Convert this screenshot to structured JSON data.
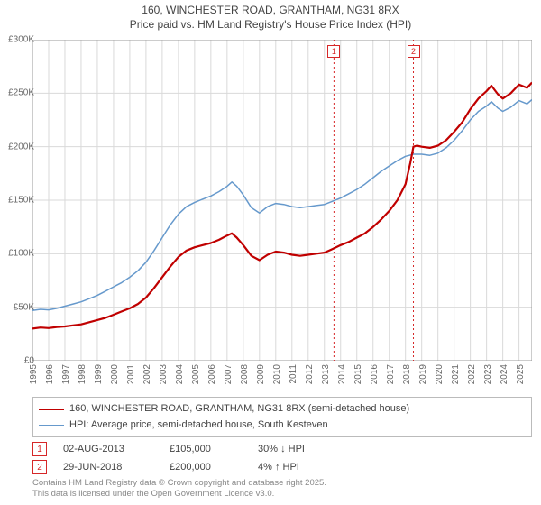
{
  "title_line1": "160, WINCHESTER ROAD, GRANTHAM, NG31 8RX",
  "title_line2": "Price paid vs. HM Land Registry's House Price Index (HPI)",
  "chart": {
    "type": "line",
    "background_color": "#ffffff",
    "grid_color": "#d9d9d9",
    "axis_color": "#999999",
    "xlim": [
      1995,
      2025.8
    ],
    "ylim": [
      0,
      300000
    ],
    "ytick_step": 50000,
    "y_ticks": [
      {
        "v": 0,
        "label": "£0"
      },
      {
        "v": 50000,
        "label": "£50K"
      },
      {
        "v": 100000,
        "label": "£100K"
      },
      {
        "v": 150000,
        "label": "£150K"
      },
      {
        "v": 200000,
        "label": "£200K"
      },
      {
        "v": 250000,
        "label": "£250K"
      },
      {
        "v": 300000,
        "label": "£300K"
      }
    ],
    "x_ticks": [
      1995,
      1996,
      1997,
      1998,
      1999,
      2000,
      2001,
      2002,
      2003,
      2004,
      2005,
      2006,
      2007,
      2008,
      2009,
      2010,
      2011,
      2012,
      2013,
      2014,
      2015,
      2016,
      2017,
      2018,
      2019,
      2020,
      2021,
      2022,
      2023,
      2024,
      2025
    ],
    "marker_line_color": "#d62728",
    "marker_line_dash": "2,3",
    "markers": [
      {
        "n": "1",
        "x": 2013.59
      },
      {
        "n": "2",
        "x": 2018.49
      }
    ],
    "series": [
      {
        "id": "price_paid",
        "color": "#c00000",
        "width": 2.2,
        "legend": "160, WINCHESTER ROAD, GRANTHAM, NG31 8RX (semi-detached house)",
        "points": [
          [
            1995.0,
            30000
          ],
          [
            1995.5,
            31000
          ],
          [
            1996.0,
            30500
          ],
          [
            1996.5,
            31500
          ],
          [
            1997.0,
            32000
          ],
          [
            1997.5,
            33000
          ],
          [
            1998.0,
            34000
          ],
          [
            1998.5,
            36000
          ],
          [
            1999.0,
            38000
          ],
          [
            1999.5,
            40000
          ],
          [
            2000.0,
            43000
          ],
          [
            2000.5,
            46000
          ],
          [
            2001.0,
            49000
          ],
          [
            2001.5,
            53000
          ],
          [
            2002.0,
            59000
          ],
          [
            2002.5,
            68000
          ],
          [
            2003.0,
            78000
          ],
          [
            2003.5,
            88000
          ],
          [
            2004.0,
            97000
          ],
          [
            2004.5,
            103000
          ],
          [
            2005.0,
            106000
          ],
          [
            2005.5,
            108000
          ],
          [
            2006.0,
            110000
          ],
          [
            2006.5,
            113000
          ],
          [
            2007.0,
            117000
          ],
          [
            2007.3,
            119000
          ],
          [
            2007.6,
            115000
          ],
          [
            2008.0,
            108000
          ],
          [
            2008.5,
            98000
          ],
          [
            2009.0,
            94000
          ],
          [
            2009.5,
            99000
          ],
          [
            2010.0,
            102000
          ],
          [
            2010.5,
            101000
          ],
          [
            2011.0,
            99000
          ],
          [
            2011.5,
            98000
          ],
          [
            2012.0,
            99000
          ],
          [
            2012.5,
            100000
          ],
          [
            2013.0,
            101000
          ],
          [
            2013.3,
            103000
          ],
          [
            2013.59,
            105000
          ],
          [
            2014.0,
            108000
          ],
          [
            2014.5,
            111000
          ],
          [
            2015.0,
            115000
          ],
          [
            2015.5,
            119000
          ],
          [
            2016.0,
            125000
          ],
          [
            2016.5,
            132000
          ],
          [
            2017.0,
            140000
          ],
          [
            2017.5,
            150000
          ],
          [
            2018.0,
            165000
          ],
          [
            2018.3,
            185000
          ],
          [
            2018.49,
            200000
          ],
          [
            2018.7,
            201000
          ],
          [
            2019.0,
            200000
          ],
          [
            2019.5,
            199000
          ],
          [
            2020.0,
            201000
          ],
          [
            2020.5,
            206000
          ],
          [
            2021.0,
            214000
          ],
          [
            2021.5,
            223000
          ],
          [
            2022.0,
            235000
          ],
          [
            2022.5,
            245000
          ],
          [
            2023.0,
            252000
          ],
          [
            2023.3,
            257000
          ],
          [
            2023.7,
            249000
          ],
          [
            2024.0,
            245000
          ],
          [
            2024.5,
            250000
          ],
          [
            2025.0,
            258000
          ],
          [
            2025.5,
            255000
          ],
          [
            2025.8,
            260000
          ]
        ]
      },
      {
        "id": "hpi",
        "color": "#6699cc",
        "width": 1.5,
        "legend": "HPI: Average price, semi-detached house, South Kesteven",
        "points": [
          [
            1995.0,
            47000
          ],
          [
            1995.5,
            48000
          ],
          [
            1996.0,
            47500
          ],
          [
            1996.5,
            49000
          ],
          [
            1997.0,
            51000
          ],
          [
            1997.5,
            53000
          ],
          [
            1998.0,
            55000
          ],
          [
            1998.5,
            58000
          ],
          [
            1999.0,
            61000
          ],
          [
            1999.5,
            65000
          ],
          [
            2000.0,
            69000
          ],
          [
            2000.5,
            73000
          ],
          [
            2001.0,
            78000
          ],
          [
            2001.5,
            84000
          ],
          [
            2002.0,
            92000
          ],
          [
            2002.5,
            103000
          ],
          [
            2003.0,
            115000
          ],
          [
            2003.5,
            127000
          ],
          [
            2004.0,
            137000
          ],
          [
            2004.5,
            144000
          ],
          [
            2005.0,
            148000
          ],
          [
            2005.5,
            151000
          ],
          [
            2006.0,
            154000
          ],
          [
            2006.5,
            158000
          ],
          [
            2007.0,
            163000
          ],
          [
            2007.3,
            167000
          ],
          [
            2007.6,
            163000
          ],
          [
            2008.0,
            155000
          ],
          [
            2008.5,
            143000
          ],
          [
            2009.0,
            138000
          ],
          [
            2009.5,
            144000
          ],
          [
            2010.0,
            147000
          ],
          [
            2010.5,
            146000
          ],
          [
            2011.0,
            144000
          ],
          [
            2011.5,
            143000
          ],
          [
            2012.0,
            144000
          ],
          [
            2012.5,
            145000
          ],
          [
            2013.0,
            146000
          ],
          [
            2013.5,
            149000
          ],
          [
            2014.0,
            152000
          ],
          [
            2014.5,
            156000
          ],
          [
            2015.0,
            160000
          ],
          [
            2015.5,
            165000
          ],
          [
            2016.0,
            171000
          ],
          [
            2016.5,
            177000
          ],
          [
            2017.0,
            182000
          ],
          [
            2017.5,
            187000
          ],
          [
            2018.0,
            191000
          ],
          [
            2018.5,
            193000
          ],
          [
            2019.0,
            193000
          ],
          [
            2019.5,
            192000
          ],
          [
            2020.0,
            194000
          ],
          [
            2020.5,
            199000
          ],
          [
            2021.0,
            206000
          ],
          [
            2021.5,
            215000
          ],
          [
            2022.0,
            225000
          ],
          [
            2022.5,
            233000
          ],
          [
            2023.0,
            238000
          ],
          [
            2023.3,
            242000
          ],
          [
            2023.7,
            236000
          ],
          [
            2024.0,
            233000
          ],
          [
            2024.5,
            237000
          ],
          [
            2025.0,
            243000
          ],
          [
            2025.5,
            240000
          ],
          [
            2025.8,
            244000
          ]
        ]
      }
    ]
  },
  "data_points": {
    "box_color": "#d62728",
    "rows": [
      {
        "n": "1",
        "date": "02-AUG-2013",
        "price": "£105,000",
        "hpi": "30% ↓ HPI"
      },
      {
        "n": "2",
        "date": "29-JUN-2018",
        "price": "£200,000",
        "hpi": "4% ↑ HPI"
      }
    ]
  },
  "footer_line1": "Contains HM Land Registry data © Crown copyright and database right 2025.",
  "footer_line2": "This data is licensed under the Open Government Licence v3.0."
}
